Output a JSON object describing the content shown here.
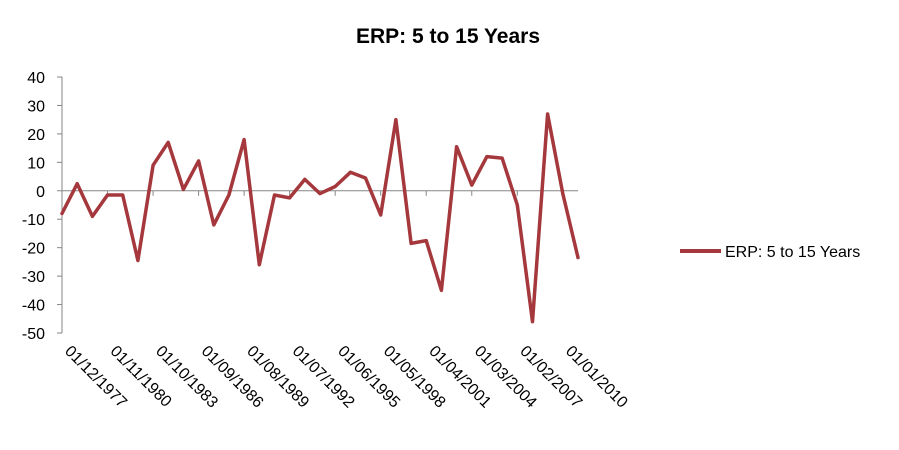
{
  "chart_data": {
    "type": "line",
    "title": "ERP: 5 to 15 Years",
    "xlabel": "",
    "ylabel": "",
    "ylim": [
      -50,
      40
    ],
    "y_ticks": [
      40,
      30,
      20,
      10,
      0,
      -10,
      -20,
      -30,
      -40,
      -50
    ],
    "x_tick_labels": [
      "01/12/1977",
      "01/11/1980",
      "01/10/1983",
      "01/09/1986",
      "01/08/1989",
      "01/07/1992",
      "01/06/1995",
      "01/05/1998",
      "01/04/2001",
      "01/03/2004",
      "01/02/2007",
      "01/01/2010"
    ],
    "grid": false,
    "legend_position": "right",
    "series": [
      {
        "name": "ERP: 5 to 15 Years",
        "color": "#A5383C",
        "values": [
          -8,
          2.5,
          -9,
          -1.5,
          -1.5,
          -24.5,
          9,
          17,
          0.5,
          10.5,
          -12,
          -1.5,
          18,
          -26,
          -1.5,
          -2.5,
          4,
          -1,
          1.5,
          6.5,
          4.5,
          -8.5,
          25,
          -18.5,
          -17.5,
          -35,
          15.5,
          2,
          12,
          11.5,
          -5,
          -46,
          27,
          -1,
          -23.5
        ]
      }
    ]
  }
}
